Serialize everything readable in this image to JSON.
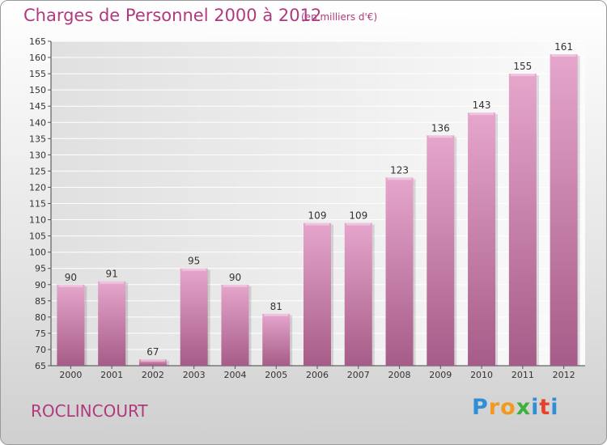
{
  "title": "Charges de Personnel 2000 à 2012",
  "subtitle": "(en milliers d'€)",
  "town": "ROCLINCOURT",
  "logo": {
    "letters": [
      "P",
      "r",
      "o",
      "x",
      "i",
      "t",
      "i"
    ],
    "colors": [
      "#2f8fd6",
      "#f29a1f",
      "#f29a1f",
      "#3db03d",
      "#2f8fd6",
      "#e8412a",
      "#2f8fd6"
    ]
  },
  "colors": {
    "bar": "#c77aa6",
    "bar_light": "#e6a6cc",
    "bar_dark": "#a65c88",
    "text_accent": "#b03a7e"
  },
  "chart_data": {
    "type": "bar",
    "categories": [
      "2000",
      "2001",
      "2002",
      "2003",
      "2004",
      "2005",
      "2006",
      "2007",
      "2008",
      "2009",
      "2010",
      "2011",
      "2012"
    ],
    "values": [
      90,
      91,
      67,
      95,
      90,
      81,
      109,
      109,
      123,
      136,
      143,
      155,
      161
    ],
    "ylim": [
      65,
      165
    ],
    "yticks": [
      65,
      70,
      75,
      80,
      85,
      90,
      95,
      100,
      105,
      110,
      115,
      120,
      125,
      130,
      135,
      140,
      145,
      150,
      155,
      160,
      165
    ],
    "grid": true,
    "title": "Charges de Personnel 2000 à 2012",
    "xlabel": "",
    "ylabel": ""
  }
}
